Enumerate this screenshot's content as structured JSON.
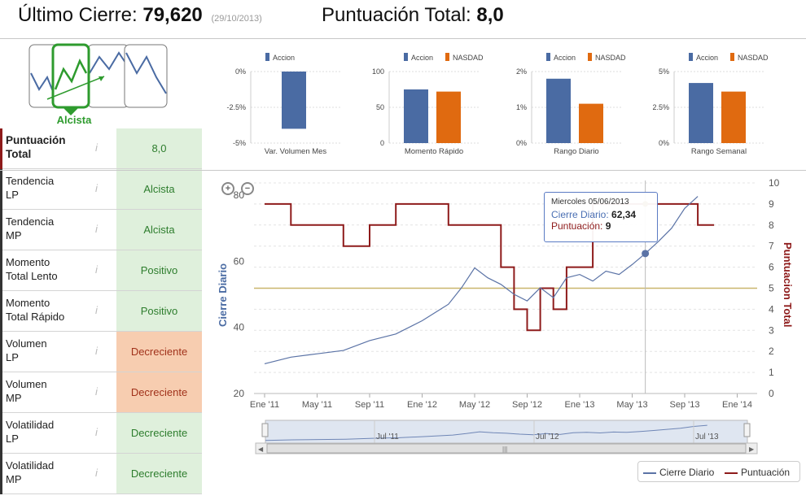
{
  "header": {
    "last_close_label": "Último Cierre:",
    "last_close_value": "79,620",
    "last_close_date": "(29/10/2013)",
    "total_score_label": "Puntuación Total:",
    "total_score_value": "8,0"
  },
  "trend": {
    "label": "Alcista"
  },
  "info_icon": "i",
  "rows": [
    {
      "label_line1": "Puntuación",
      "label_line2": "Total",
      "value": "8,0",
      "tone": "green"
    },
    {
      "label_line1": "Tendencia",
      "label_line2": "LP",
      "value": "Alcista",
      "tone": "green"
    },
    {
      "label_line1": "Tendencia",
      "label_line2": "MP",
      "value": "Alcista",
      "tone": "green"
    },
    {
      "label_line1": "Momento",
      "label_line2": "Total Lento",
      "value": "Positivo",
      "tone": "green"
    },
    {
      "label_line1": "Momento",
      "label_line2": "Total Rápido",
      "value": "Positivo",
      "tone": "green"
    },
    {
      "label_line1": "Volumen",
      "label_line2": "LP",
      "value": "Decreciente",
      "tone": "orange"
    },
    {
      "label_line1": "Volumen",
      "label_line2": "MP",
      "value": "Decreciente",
      "tone": "orange"
    },
    {
      "label_line1": "Volatilidad",
      "label_line2": "LP",
      "value": "Decreciente",
      "tone": "green"
    },
    {
      "label_line1": "Volatilidad",
      "label_line2": "MP",
      "value": "Decreciente",
      "tone": "green"
    }
  ],
  "colors": {
    "accion": "#4a6ba3",
    "nasdaq": "#e06a10",
    "cierre": "#5b73a6",
    "puntuacion": "#8e1b1b",
    "ref_line": "#c9b66d"
  },
  "chart_data": [
    {
      "type": "bar",
      "title": "Var. Volumen Mes",
      "series": [
        {
          "name": "Accion",
          "values": [
            -4.0
          ]
        }
      ],
      "yticks": [
        "0%",
        "-2.5%",
        "-5%"
      ],
      "ylim": [
        -5,
        0
      ]
    },
    {
      "type": "bar",
      "title": "Momento Rápido",
      "series": [
        {
          "name": "Accion",
          "values": [
            75
          ]
        },
        {
          "name": "NASDAD",
          "values": [
            72
          ]
        }
      ],
      "yticks": [
        "100",
        "50",
        "0"
      ],
      "ylim": [
        0,
        100
      ]
    },
    {
      "type": "bar",
      "title": "Rango Diario",
      "series": [
        {
          "name": "Accion",
          "values": [
            1.8
          ]
        },
        {
          "name": "NASDAD",
          "values": [
            1.1
          ]
        }
      ],
      "yticks": [
        "2%",
        "1%",
        "0%"
      ],
      "ylim": [
        0,
        2
      ]
    },
    {
      "type": "bar",
      "title": "Rango Semanal",
      "series": [
        {
          "name": "Accion",
          "values": [
            4.2
          ]
        },
        {
          "name": "NASDAD",
          "values": [
            3.6
          ]
        }
      ],
      "yticks": [
        "5%",
        "2.5%",
        "0%"
      ],
      "ylim": [
        0,
        5
      ]
    },
    {
      "type": "line",
      "ylabel_left": "Cierre Diario",
      "ylabel_right": "Puntuacion Total",
      "yticks_left": [
        "80",
        "60",
        "40",
        "20"
      ],
      "ylim_left": [
        20,
        80
      ],
      "yticks_right": [
        "10",
        "9",
        "8",
        "7",
        "6",
        "5",
        "4",
        "3",
        "2",
        "1",
        "0"
      ],
      "ylim_right": [
        0,
        10
      ],
      "xticks": [
        "Ene '11",
        "May '11",
        "Sep '11",
        "Ene '12",
        "May '12",
        "Sep '12",
        "Ene '13",
        "May '13",
        "Sep '13",
        "Ene '14"
      ],
      "navigator_ticks": [
        "Jul '11",
        "Jul '12",
        "Jul '13"
      ],
      "series": [
        {
          "name": "Cierre Diario",
          "x": [
            "2011-01",
            "2011-03",
            "2011-05",
            "2011-07",
            "2011-09",
            "2011-11",
            "2012-01",
            "2012-03",
            "2012-04",
            "2012-05",
            "2012-06",
            "2012-07",
            "2012-08",
            "2012-09",
            "2012-10",
            "2012-11",
            "2012-12",
            "2013-01",
            "2013-02",
            "2013-03",
            "2013-04",
            "2013-05",
            "2013-06",
            "2013-07",
            "2013-08",
            "2013-09",
            "2013-10"
          ],
          "values": [
            29,
            31,
            32,
            33,
            36,
            38,
            42,
            47,
            52,
            58,
            55,
            53,
            50,
            48,
            52,
            49,
            55,
            56,
            54,
            57,
            56,
            59,
            62.34,
            66,
            70,
            76,
            79.6
          ]
        },
        {
          "name": "Puntuación",
          "x": [
            "2011-01",
            "2011-03",
            "2011-05",
            "2011-07",
            "2011-09",
            "2011-11",
            "2012-01",
            "2012-03",
            "2012-05",
            "2012-07",
            "2012-08",
            "2012-09",
            "2012-10",
            "2012-11",
            "2012-12",
            "2013-02",
            "2013-04",
            "2013-06",
            "2013-08",
            "2013-10"
          ],
          "values": [
            9,
            8,
            8,
            7,
            8,
            9,
            9,
            8,
            8,
            6,
            4,
            3,
            5,
            4,
            6,
            9,
            9,
            9,
            9,
            8
          ]
        }
      ],
      "reference_level": 5,
      "tooltip": {
        "date": "Miercoles 05/06/2013",
        "close_label": "Cierre Diario:",
        "close_value": "62,34",
        "score_label": "Puntuación:",
        "score_value": "9"
      }
    }
  ],
  "legend": {
    "cierre": "Cierre Diario",
    "puntuacion": "Puntuación"
  }
}
